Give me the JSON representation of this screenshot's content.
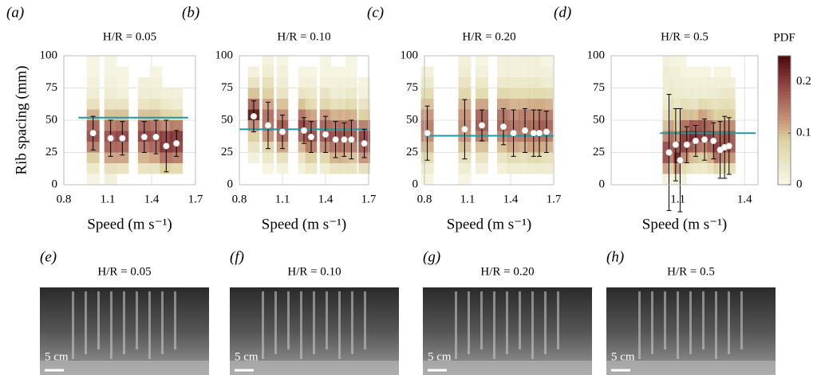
{
  "chart_data": [
    {
      "type": "scatter",
      "panel": "(a)",
      "title": "H/R = 0.05",
      "xlabel": "Speed (m  s⁻¹)",
      "ylabel": "Rib spacing (mm)",
      "xlim": [
        0.8,
        1.7
      ],
      "xticks": [
        0.8,
        1.1,
        1.4,
        1.7
      ],
      "ylim": [
        0,
        100
      ],
      "yticks": [
        0,
        25,
        50,
        75,
        100
      ],
      "x": [
        1.0,
        1.12,
        1.2,
        1.35,
        1.43,
        1.5,
        1.57
      ],
      "values": [
        40,
        36,
        36,
        37,
        37,
        30,
        32
      ],
      "errors": [
        13,
        14,
        13,
        12,
        13,
        20,
        10
      ],
      "hline": {
        "value": 52,
        "x": [
          0.9,
          1.65
        ],
        "color": "#1a9aaa"
      },
      "pdf_bins": [
        0,
        8.33,
        16.67,
        25,
        33.33,
        41.67,
        50,
        58.33,
        66.67,
        75,
        83.33,
        91.67,
        100
      ],
      "pdf": [
        [
          0.01,
          0.04,
          0.09,
          0.15,
          0.19,
          0.17,
          0.11,
          0.06,
          0.03,
          0.02,
          0.01,
          0.01
        ],
        [
          0.02,
          0.06,
          0.12,
          0.17,
          0.19,
          0.15,
          0.1,
          0.05,
          0.03,
          0.02,
          0.01,
          0.01
        ],
        [
          0,
          0.05,
          0.12,
          0.17,
          0.2,
          0.16,
          0.1,
          0.05,
          0.02,
          0.01,
          0.01,
          0
        ],
        [
          0,
          0.05,
          0.11,
          0.16,
          0.2,
          0.17,
          0.1,
          0.05,
          0.03,
          0.02,
          0,
          0
        ],
        [
          0,
          0.05,
          0.12,
          0.17,
          0.19,
          0.16,
          0.1,
          0.06,
          0.03,
          0.02,
          0.01,
          0
        ],
        [
          0,
          0.09,
          0.16,
          0.21,
          0.2,
          0.14,
          0.08,
          0.04,
          0.02,
          0,
          0,
          0
        ],
        [
          0,
          0.07,
          0.15,
          0.2,
          0.21,
          0.15,
          0.07,
          0.03,
          0.02,
          0,
          0,
          0
        ]
      ]
    },
    {
      "type": "scatter",
      "panel": "(b)",
      "title": "H/R = 0.10",
      "xlim": [
        0.8,
        1.7
      ],
      "xticks": [
        0.8,
        1.1,
        1.4,
        1.7
      ],
      "ylim": [
        0,
        100
      ],
      "yticks": [
        0,
        25,
        50,
        75,
        100
      ],
      "x": [
        0.9,
        1.0,
        1.1,
        1.25,
        1.3,
        1.4,
        1.47,
        1.53,
        1.58,
        1.67
      ],
      "values": [
        53,
        46,
        41,
        42,
        37,
        39,
        35,
        35,
        35,
        32
      ],
      "errors": [
        12,
        18,
        13,
        10,
        12,
        14,
        14,
        13,
        15,
        11
      ],
      "hline": {
        "value": 43,
        "x": [
          0.8,
          1.7
        ],
        "color": "#1a9aaa"
      },
      "pdf_bins": [
        0,
        8.33,
        16.67,
        25,
        33.33,
        41.67,
        50,
        58.33,
        66.67,
        75,
        83.33,
        91.67,
        100
      ],
      "pdf": [
        [
          0,
          0,
          0.02,
          0.05,
          0.09,
          0.14,
          0.24,
          0.17,
          0.1,
          0.05,
          0.02,
          0
        ],
        [
          0,
          0.01,
          0.04,
          0.08,
          0.13,
          0.16,
          0.16,
          0.12,
          0.09,
          0.06,
          0.03,
          0.02
        ],
        [
          0,
          0.02,
          0.06,
          0.12,
          0.17,
          0.18,
          0.14,
          0.1,
          0.05,
          0.03,
          0.02,
          0.01
        ],
        [
          0,
          0.02,
          0.05,
          0.11,
          0.17,
          0.2,
          0.16,
          0.1,
          0.05,
          0.02,
          0.01,
          0
        ],
        [
          0,
          0.04,
          0.09,
          0.15,
          0.19,
          0.17,
          0.12,
          0.07,
          0.04,
          0.02,
          0.01,
          0
        ],
        [
          0,
          0.03,
          0.08,
          0.14,
          0.18,
          0.17,
          0.13,
          0.08,
          0.05,
          0.02,
          0.01,
          0.01
        ],
        [
          0,
          0.05,
          0.11,
          0.16,
          0.19,
          0.16,
          0.11,
          0.06,
          0.03,
          0.02,
          0.01,
          0
        ],
        [
          0,
          0.05,
          0.11,
          0.16,
          0.19,
          0.16,
          0.11,
          0.06,
          0.03,
          0.02,
          0.01,
          0
        ],
        [
          0,
          0.05,
          0.1,
          0.15,
          0.18,
          0.16,
          0.11,
          0.07,
          0.04,
          0.02,
          0.01,
          0.01
        ],
        [
          0,
          0.06,
          0.13,
          0.18,
          0.2,
          0.15,
          0.09,
          0.05,
          0.02,
          0.01,
          0,
          0
        ]
      ]
    },
    {
      "type": "scatter",
      "panel": "(c)",
      "title": "H/R = 0.20",
      "xlim": [
        0.8,
        1.7
      ],
      "xticks": [
        0.8,
        1.1,
        1.4,
        1.7
      ],
      "ylim": [
        0,
        100
      ],
      "yticks": [
        0,
        25,
        50,
        75,
        100
      ],
      "x": [
        0.82,
        1.08,
        1.2,
        1.35,
        1.42,
        1.5,
        1.56,
        1.6,
        1.65
      ],
      "values": [
        40,
        43,
        46,
        45,
        40,
        42,
        40,
        40,
        41
      ],
      "errors": [
        21,
        23,
        12,
        14,
        18,
        17,
        18,
        18,
        16
      ],
      "hline": {
        "value": 38,
        "x": [
          0.8,
          1.7
        ],
        "color": "#1a9aaa"
      },
      "pdf_bins": [
        0,
        8.33,
        16.67,
        25,
        33.33,
        41.67,
        50,
        58.33,
        66.67,
        75,
        83.33,
        91.67,
        100
      ],
      "pdf": [
        [
          0.01,
          0.03,
          0.07,
          0.11,
          0.14,
          0.15,
          0.13,
          0.1,
          0.07,
          0.04,
          0.02,
          0
        ],
        [
          0.01,
          0.03,
          0.06,
          0.1,
          0.13,
          0.14,
          0.13,
          0.11,
          0.08,
          0.05,
          0.03,
          0.02
        ],
        [
          0,
          0.02,
          0.05,
          0.1,
          0.15,
          0.18,
          0.17,
          0.12,
          0.07,
          0.04,
          0.02,
          0.01
        ],
        [
          0,
          0.02,
          0.05,
          0.1,
          0.14,
          0.17,
          0.16,
          0.12,
          0.08,
          0.04,
          0.02,
          0.02
        ],
        [
          0,
          0.03,
          0.07,
          0.12,
          0.15,
          0.16,
          0.14,
          0.11,
          0.07,
          0.04,
          0.02,
          0.02
        ],
        [
          0,
          0.03,
          0.06,
          0.11,
          0.15,
          0.16,
          0.15,
          0.11,
          0.07,
          0.04,
          0.02,
          0.02
        ],
        [
          0,
          0.03,
          0.07,
          0.12,
          0.15,
          0.16,
          0.14,
          0.11,
          0.07,
          0.04,
          0.02,
          0.02
        ],
        [
          0,
          0.03,
          0.07,
          0.12,
          0.15,
          0.16,
          0.14,
          0.11,
          0.07,
          0.04,
          0.02,
          0.02
        ],
        [
          0,
          0.03,
          0.06,
          0.11,
          0.15,
          0.17,
          0.15,
          0.11,
          0.07,
          0.03,
          0.02,
          0.01
        ]
      ]
    },
    {
      "type": "scatter",
      "panel": "(d)",
      "title": "H/R = 0.5",
      "xlim": [
        0.8,
        1.46
      ],
      "xticks": [
        1.1,
        1.4
      ],
      "ylim": [
        0,
        100
      ],
      "yticks": [
        0,
        25,
        50,
        75,
        100
      ],
      "x": [
        1.06,
        1.09,
        1.11,
        1.14,
        1.18,
        1.22,
        1.26,
        1.29,
        1.31,
        1.33
      ],
      "values": [
        25,
        31,
        19,
        31,
        34,
        35,
        34,
        27,
        29,
        30
      ],
      "errors": [
        45,
        28,
        40,
        14,
        12,
        16,
        14,
        22,
        24,
        22
      ],
      "hline": {
        "value": 40,
        "x": [
          1.02,
          1.45
        ],
        "color": "#1a9aaa"
      },
      "pdf_bins": [
        0,
        8.33,
        16.67,
        25,
        33.33,
        41.67,
        50,
        58.33,
        66.67,
        75,
        83.33,
        91.67,
        100
      ],
      "pdf": [
        [
          0.02,
          0.12,
          0.19,
          0.19,
          0.14,
          0.1,
          0.06,
          0.04,
          0.03,
          0.03,
          0.03,
          0.02
        ],
        [
          0.01,
          0.08,
          0.14,
          0.17,
          0.16,
          0.12,
          0.08,
          0.06,
          0.04,
          0.03,
          0.02,
          0.01
        ],
        [
          0.02,
          0.13,
          0.22,
          0.18,
          0.12,
          0.08,
          0.06,
          0.04,
          0.03,
          0.02,
          0.02,
          0.01
        ],
        [
          0,
          0.06,
          0.13,
          0.19,
          0.2,
          0.16,
          0.1,
          0.06,
          0.03,
          0.02,
          0.01,
          0
        ],
        [
          0,
          0.04,
          0.1,
          0.17,
          0.22,
          0.18,
          0.1,
          0.05,
          0.03,
          0.02,
          0.01,
          0
        ],
        [
          0,
          0.04,
          0.09,
          0.15,
          0.2,
          0.18,
          0.12,
          0.07,
          0.03,
          0.02,
          0.01,
          0
        ],
        [
          0,
          0.05,
          0.11,
          0.17,
          0.2,
          0.16,
          0.1,
          0.06,
          0.03,
          0.02,
          0,
          0
        ],
        [
          0,
          0.08,
          0.16,
          0.2,
          0.17,
          0.12,
          0.08,
          0.05,
          0.03,
          0.02,
          0.01,
          0
        ],
        [
          0,
          0.07,
          0.14,
          0.18,
          0.17,
          0.13,
          0.09,
          0.06,
          0.04,
          0.02,
          0.01,
          0
        ],
        [
          0,
          0.06,
          0.13,
          0.18,
          0.18,
          0.14,
          0.09,
          0.06,
          0.04,
          0.02,
          0,
          0
        ]
      ],
      "colorbar": {
        "label": "PDF",
        "clim": [
          0,
          0.25
        ],
        "ticks": [
          0,
          0.1,
          0.2
        ]
      }
    }
  ],
  "photos": [
    {
      "panel": "(e)",
      "title": "H/R = 0.05",
      "scale": "5 cm"
    },
    {
      "panel": "(f)",
      "title": "H/R = 0.10",
      "scale": "5 cm"
    },
    {
      "panel": "(g)",
      "title": "H/R = 0.20",
      "scale": "5 cm"
    },
    {
      "panel": "(h)",
      "title": "H/R = 0.5",
      "scale": "5 cm"
    }
  ]
}
